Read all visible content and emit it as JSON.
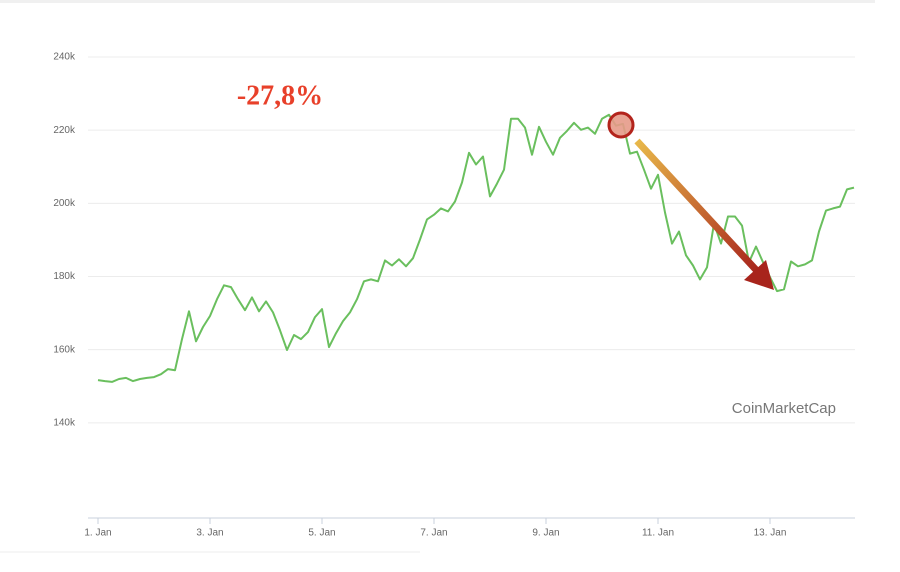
{
  "chart_data": {
    "type": "line",
    "annotation": "-27,8%",
    "watermark": "CoinMarketCap",
    "color": "#6abf5e",
    "grid": true,
    "xlim": [
      1,
      14.5
    ],
    "ylim": [
      114000,
      246000
    ],
    "xticks": [
      {
        "value": 1,
        "label": "1. Jan"
      },
      {
        "value": 3,
        "label": "3. Jan"
      },
      {
        "value": 5,
        "label": "5. Jan"
      },
      {
        "value": 7,
        "label": "7. Jan"
      },
      {
        "value": 9,
        "label": "9. Jan"
      },
      {
        "value": 11,
        "label": "11. Jan"
      },
      {
        "value": 13,
        "label": "13. Jan"
      }
    ],
    "yticks": [
      {
        "value": 140000,
        "label": "140k"
      },
      {
        "value": 160000,
        "label": "160k"
      },
      {
        "value": 180000,
        "label": "180k"
      },
      {
        "value": 200000,
        "label": "200k"
      },
      {
        "value": 220000,
        "label": "220k"
      },
      {
        "value": 240000,
        "label": "240k"
      }
    ],
    "x": [
      1,
      1.125,
      1.25,
      1.375,
      1.5,
      1.625,
      1.75,
      1.875,
      2,
      2.125,
      2.25,
      2.375,
      2.5,
      2.625,
      2.75,
      2.875,
      3,
      3.125,
      3.25,
      3.375,
      3.5,
      3.625,
      3.75,
      3.875,
      4,
      4.125,
      4.25,
      4.375,
      4.5,
      4.625,
      4.75,
      4.875,
      5,
      5.125,
      5.25,
      5.375,
      5.5,
      5.625,
      5.75,
      5.875,
      6,
      6.125,
      6.25,
      6.375,
      6.5,
      6.625,
      6.75,
      6.875,
      7,
      7.125,
      7.25,
      7.375,
      7.5,
      7.625,
      7.75,
      7.875,
      8,
      8.125,
      8.25,
      8.375,
      8.5,
      8.625,
      8.75,
      8.875,
      9,
      9.125,
      9.25,
      9.375,
      9.5,
      9.625,
      9.75,
      9.875,
      10,
      10.125,
      10.25,
      10.375,
      10.5,
      10.625,
      10.75,
      10.875,
      11,
      11.125,
      11.25,
      11.375,
      11.5,
      11.625,
      11.75,
      11.875,
      12,
      12.125,
      12.25,
      12.375,
      12.5,
      12.625,
      12.75,
      12.875,
      13,
      13.125,
      13.25,
      13.375,
      13.5,
      13.625,
      13.75,
      13.875,
      14,
      14.125,
      14.25,
      14.375,
      14.5
    ],
    "values": [
      151700,
      151400,
      151200,
      152000,
      152300,
      151400,
      152000,
      152300,
      152500,
      153300,
      154700,
      154400,
      162900,
      170500,
      162300,
      166200,
      169200,
      173800,
      177600,
      177100,
      173800,
      170800,
      174300,
      170500,
      173200,
      170200,
      165300,
      159900,
      164000,
      162900,
      164800,
      168900,
      171100,
      160700,
      164500,
      167800,
      170200,
      173800,
      178700,
      179200,
      178700,
      184400,
      183000,
      184700,
      182800,
      185000,
      190100,
      195600,
      196900,
      198600,
      197800,
      200500,
      205700,
      213800,
      210600,
      212800,
      201900,
      205400,
      209200,
      223100,
      223100,
      220700,
      213300,
      220900,
      216800,
      213300,
      217900,
      219800,
      222000,
      220100,
      220700,
      219000,
      223100,
      224200,
      221200,
      221700,
      213600,
      214100,
      209200,
      204000,
      207800,
      197500,
      189000,
      192300,
      185800,
      183000,
      179200,
      182500,
      194500,
      189000,
      196400,
      196400,
      193900,
      183900,
      188200,
      183900,
      179800,
      176000,
      176500,
      184100,
      182800,
      183300,
      184400,
      192300,
      198000,
      198600,
      199100,
      203800,
      204300
    ]
  }
}
